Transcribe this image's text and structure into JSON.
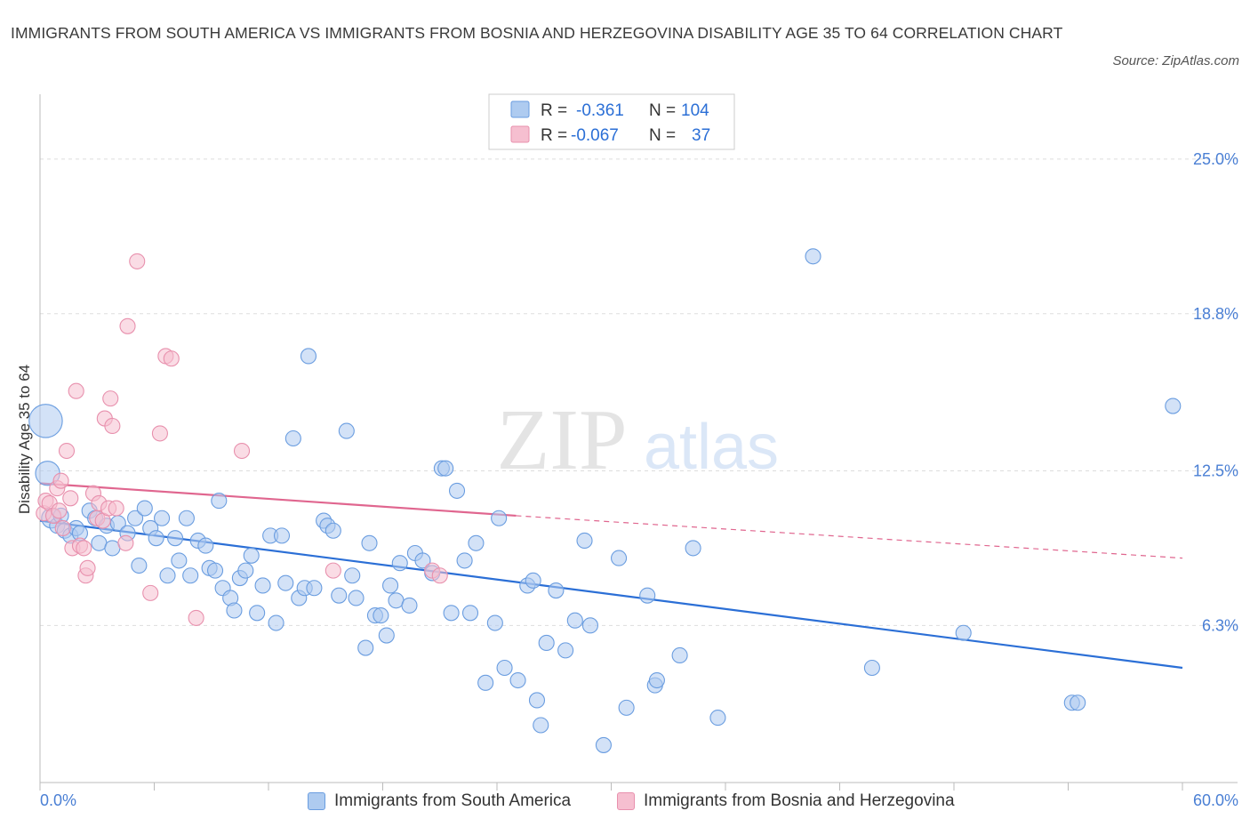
{
  "title": "IMMIGRANTS FROM SOUTH AMERICA VS IMMIGRANTS FROM BOSNIA AND HERZEGOVINA DISABILITY AGE 35 TO 64 CORRELATION CHART",
  "source": "Source: ZipAtlas.com",
  "watermark": {
    "zip": "ZIP",
    "atlas": "atlas"
  },
  "colors": {
    "blue_fill": "#aecbf0",
    "blue_stroke": "#6a9de0",
    "blue_line": "#2b6fd6",
    "pink_fill": "#f6bfd0",
    "pink_stroke": "#e890ad",
    "pink_line": "#e0668f",
    "axis_label": "#4a7fd4",
    "grid": "#dddddd"
  },
  "legend_top": {
    "rows": [
      {
        "r_label": "R =",
        "r_value": "-0.361",
        "n_label": "N =",
        "n_value": "104"
      },
      {
        "r_label": "R =",
        "r_value": "-0.067",
        "n_label": "N =",
        "n_value": "37"
      }
    ]
  },
  "chart_data": {
    "type": "scatter",
    "title": "IMMIGRANTS FROM SOUTH AMERICA VS IMMIGRANTS FROM BOSNIA AND HERZEGOVINA DISABILITY AGE 35 TO 64 CORRELATION CHART",
    "xlabel": "",
    "ylabel": "Disability Age 35 to 64",
    "xlim": [
      0,
      60
    ],
    "ylim": [
      0,
      27.6
    ],
    "x_tick_labels": [
      "0.0%",
      "60.0%"
    ],
    "y_ticks": [
      6.3,
      12.5,
      18.8,
      25.0
    ],
    "y_tick_labels": [
      "6.3%",
      "12.5%",
      "18.8%",
      "25.0%"
    ],
    "grid": true,
    "legend_position": "top-center",
    "series": [
      {
        "name": "Immigrants from South America",
        "color": "#aecbf0",
        "R": -0.361,
        "N": 104,
        "trend": {
          "x": [
            0,
            60
          ],
          "y": [
            10.5,
            4.6
          ],
          "style": "solid"
        },
        "points": [
          {
            "x": 0.3,
            "y": 14.5,
            "s": 2.2
          },
          {
            "x": 0.4,
            "y": 12.4,
            "s": 1.6
          },
          {
            "x": 0.6,
            "y": 10.6,
            "s": 1.3
          },
          {
            "x": 0.9,
            "y": 10.3
          },
          {
            "x": 1.1,
            "y": 10.7
          },
          {
            "x": 1.3,
            "y": 10.1
          },
          {
            "x": 1.6,
            "y": 9.9
          },
          {
            "x": 1.9,
            "y": 10.2
          },
          {
            "x": 2.1,
            "y": 10.0
          },
          {
            "x": 2.6,
            "y": 10.9
          },
          {
            "x": 2.9,
            "y": 10.6
          },
          {
            "x": 3.1,
            "y": 9.6
          },
          {
            "x": 3.5,
            "y": 10.3
          },
          {
            "x": 3.8,
            "y": 9.4
          },
          {
            "x": 4.1,
            "y": 10.4
          },
          {
            "x": 4.6,
            "y": 10.0
          },
          {
            "x": 5.0,
            "y": 10.6
          },
          {
            "x": 5.2,
            "y": 8.7
          },
          {
            "x": 5.5,
            "y": 11.0
          },
          {
            "x": 5.8,
            "y": 10.2
          },
          {
            "x": 6.1,
            "y": 9.8
          },
          {
            "x": 6.4,
            "y": 10.6
          },
          {
            "x": 6.7,
            "y": 8.3
          },
          {
            "x": 7.1,
            "y": 9.8
          },
          {
            "x": 7.3,
            "y": 8.9
          },
          {
            "x": 7.7,
            "y": 10.6
          },
          {
            "x": 7.9,
            "y": 8.3
          },
          {
            "x": 8.3,
            "y": 9.7
          },
          {
            "x": 8.7,
            "y": 9.5
          },
          {
            "x": 8.9,
            "y": 8.6
          },
          {
            "x": 9.2,
            "y": 8.5
          },
          {
            "x": 9.4,
            "y": 11.3
          },
          {
            "x": 9.6,
            "y": 7.8
          },
          {
            "x": 10.0,
            "y": 7.4
          },
          {
            "x": 10.2,
            "y": 6.9
          },
          {
            "x": 10.5,
            "y": 8.2
          },
          {
            "x": 10.8,
            "y": 8.5
          },
          {
            "x": 11.1,
            "y": 9.1
          },
          {
            "x": 11.4,
            "y": 6.8
          },
          {
            "x": 11.7,
            "y": 7.9
          },
          {
            "x": 12.1,
            "y": 9.9
          },
          {
            "x": 12.4,
            "y": 6.4
          },
          {
            "x": 12.7,
            "y": 9.9
          },
          {
            "x": 12.9,
            "y": 8.0
          },
          {
            "x": 13.3,
            "y": 13.8
          },
          {
            "x": 13.6,
            "y": 7.4
          },
          {
            "x": 13.9,
            "y": 7.8
          },
          {
            "x": 14.1,
            "y": 17.1
          },
          {
            "x": 14.4,
            "y": 7.8
          },
          {
            "x": 14.9,
            "y": 10.5
          },
          {
            "x": 15.1,
            "y": 10.3
          },
          {
            "x": 15.4,
            "y": 10.1
          },
          {
            "x": 15.7,
            "y": 7.5
          },
          {
            "x": 16.1,
            "y": 14.1
          },
          {
            "x": 16.4,
            "y": 8.3
          },
          {
            "x": 16.6,
            "y": 7.4
          },
          {
            "x": 17.1,
            "y": 5.4
          },
          {
            "x": 17.3,
            "y": 9.6
          },
          {
            "x": 17.6,
            "y": 6.7
          },
          {
            "x": 17.9,
            "y": 6.7
          },
          {
            "x": 18.2,
            "y": 5.9
          },
          {
            "x": 18.4,
            "y": 7.9
          },
          {
            "x": 18.7,
            "y": 7.3
          },
          {
            "x": 18.9,
            "y": 8.8
          },
          {
            "x": 19.4,
            "y": 7.1
          },
          {
            "x": 19.7,
            "y": 9.2
          },
          {
            "x": 20.1,
            "y": 8.9
          },
          {
            "x": 20.6,
            "y": 8.4
          },
          {
            "x": 21.1,
            "y": 12.6
          },
          {
            "x": 21.3,
            "y": 12.6
          },
          {
            "x": 21.6,
            "y": 6.8
          },
          {
            "x": 21.9,
            "y": 11.7
          },
          {
            "x": 22.3,
            "y": 8.9
          },
          {
            "x": 22.6,
            "y": 6.8
          },
          {
            "x": 22.9,
            "y": 9.6
          },
          {
            "x": 23.4,
            "y": 4.0
          },
          {
            "x": 23.9,
            "y": 6.4
          },
          {
            "x": 24.1,
            "y": 10.6
          },
          {
            "x": 24.4,
            "y": 4.6
          },
          {
            "x": 25.1,
            "y": 4.1
          },
          {
            "x": 25.6,
            "y": 7.9
          },
          {
            "x": 25.9,
            "y": 8.1
          },
          {
            "x": 26.1,
            "y": 3.3
          },
          {
            "x": 26.3,
            "y": 2.3
          },
          {
            "x": 26.6,
            "y": 5.6
          },
          {
            "x": 27.1,
            "y": 7.7
          },
          {
            "x": 27.6,
            "y": 5.3
          },
          {
            "x": 28.1,
            "y": 6.5
          },
          {
            "x": 28.6,
            "y": 9.7
          },
          {
            "x": 28.9,
            "y": 6.3
          },
          {
            "x": 29.6,
            "y": 1.5
          },
          {
            "x": 30.4,
            "y": 9.0
          },
          {
            "x": 30.8,
            "y": 3.0
          },
          {
            "x": 31.9,
            "y": 7.5
          },
          {
            "x": 32.3,
            "y": 3.9
          },
          {
            "x": 32.4,
            "y": 4.1
          },
          {
            "x": 33.6,
            "y": 5.1
          },
          {
            "x": 34.3,
            "y": 9.4
          },
          {
            "x": 35.6,
            "y": 2.6
          },
          {
            "x": 40.6,
            "y": 21.1
          },
          {
            "x": 43.7,
            "y": 4.6
          },
          {
            "x": 48.5,
            "y": 6.0
          },
          {
            "x": 54.2,
            "y": 3.2
          },
          {
            "x": 54.5,
            "y": 3.2
          },
          {
            "x": 59.5,
            "y": 15.1
          }
        ]
      },
      {
        "name": "Immigrants from Bosnia and Herzegovina",
        "color": "#f6bfd0",
        "R": -0.067,
        "N": 37,
        "trend": {
          "x": [
            0,
            25
          ],
          "y": [
            12.0,
            10.7
          ],
          "style": "solid",
          "extended": {
            "x": [
              25,
              60
            ],
            "y": [
              10.7,
              9.0
            ],
            "style": "dashed"
          }
        },
        "points": [
          {
            "x": 0.2,
            "y": 10.8
          },
          {
            "x": 0.3,
            "y": 11.3
          },
          {
            "x": 0.5,
            "y": 11.2
          },
          {
            "x": 0.7,
            "y": 10.7
          },
          {
            "x": 0.9,
            "y": 11.8
          },
          {
            "x": 1.0,
            "y": 10.9
          },
          {
            "x": 1.1,
            "y": 12.1
          },
          {
            "x": 1.2,
            "y": 10.2
          },
          {
            "x": 1.4,
            "y": 13.3
          },
          {
            "x": 1.6,
            "y": 11.4
          },
          {
            "x": 1.7,
            "y": 9.4
          },
          {
            "x": 1.9,
            "y": 15.7
          },
          {
            "x": 2.1,
            "y": 9.5
          },
          {
            "x": 2.3,
            "y": 9.4
          },
          {
            "x": 2.4,
            "y": 8.3
          },
          {
            "x": 2.5,
            "y": 8.6
          },
          {
            "x": 2.8,
            "y": 11.6
          },
          {
            "x": 3.0,
            "y": 10.6
          },
          {
            "x": 3.1,
            "y": 11.2
          },
          {
            "x": 3.3,
            "y": 10.5
          },
          {
            "x": 3.4,
            "y": 14.6
          },
          {
            "x": 3.6,
            "y": 11.0
          },
          {
            "x": 3.7,
            "y": 15.4
          },
          {
            "x": 3.8,
            "y": 14.3
          },
          {
            "x": 4.0,
            "y": 11.0
          },
          {
            "x": 4.5,
            "y": 9.6
          },
          {
            "x": 4.6,
            "y": 18.3
          },
          {
            "x": 5.1,
            "y": 20.9
          },
          {
            "x": 5.8,
            "y": 7.6
          },
          {
            "x": 6.3,
            "y": 14.0
          },
          {
            "x": 6.6,
            "y": 17.1
          },
          {
            "x": 6.9,
            "y": 17.0
          },
          {
            "x": 8.2,
            "y": 6.6
          },
          {
            "x": 10.6,
            "y": 13.3
          },
          {
            "x": 15.4,
            "y": 8.5
          },
          {
            "x": 20.6,
            "y": 8.5
          },
          {
            "x": 21.0,
            "y": 8.3
          }
        ]
      }
    ]
  }
}
